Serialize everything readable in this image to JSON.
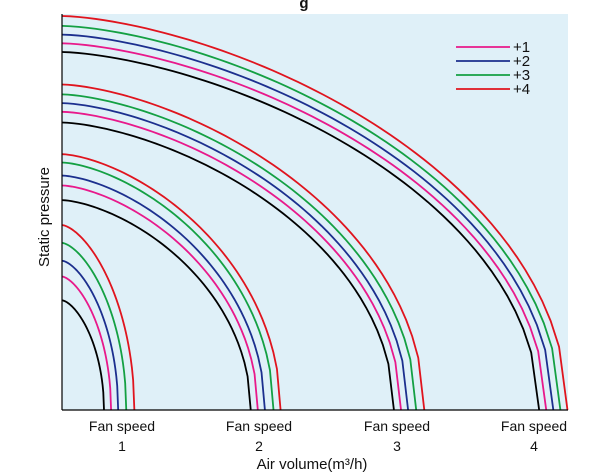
{
  "chart_data": {
    "type": "line",
    "title": "",
    "title_fragment": "g",
    "xlabel": "Air volume(m³/h)",
    "ylabel": "Static pressure",
    "background": "#dff0f8",
    "grid": false,
    "legend_position": "top-right",
    "fan_speeds": [
      {
        "label": "Fan speed",
        "number": "1"
      },
      {
        "label": "Fan speed",
        "number": "2"
      },
      {
        "label": "Fan speed",
        "number": "3"
      },
      {
        "label": "Fan speed",
        "number": "4"
      }
    ],
    "series_styles": [
      {
        "name": "",
        "color": "#000000"
      },
      {
        "name": "+1",
        "color": "#e8198b"
      },
      {
        "name": "+2",
        "color": "#1c2f8e"
      },
      {
        "name": "+3",
        "color": "#14a043"
      },
      {
        "name": "+4",
        "color": "#e0141e"
      }
    ],
    "curves": [
      {
        "fan_speed": 1,
        "step": 0,
        "y0": 0.277,
        "x_end": 0.083
      },
      {
        "fan_speed": 1,
        "step": 1,
        "y0": 0.337,
        "x_end": 0.097
      },
      {
        "fan_speed": 1,
        "step": 2,
        "y0": 0.377,
        "x_end": 0.111
      },
      {
        "fan_speed": 1,
        "step": 3,
        "y0": 0.422,
        "x_end": 0.127
      },
      {
        "fan_speed": 1,
        "step": 4,
        "y0": 0.467,
        "x_end": 0.143
      },
      {
        "fan_speed": 2,
        "step": 0,
        "y0": 0.53,
        "x_end": 0.373
      },
      {
        "fan_speed": 2,
        "step": 1,
        "y0": 0.567,
        "x_end": 0.387
      },
      {
        "fan_speed": 2,
        "step": 2,
        "y0": 0.592,
        "x_end": 0.401
      },
      {
        "fan_speed": 2,
        "step": 3,
        "y0": 0.625,
        "x_end": 0.418
      },
      {
        "fan_speed": 2,
        "step": 4,
        "y0": 0.646,
        "x_end": 0.432
      },
      {
        "fan_speed": 3,
        "step": 0,
        "y0": 0.726,
        "x_end": 0.656
      },
      {
        "fan_speed": 3,
        "step": 1,
        "y0": 0.753,
        "x_end": 0.67
      },
      {
        "fan_speed": 3,
        "step": 2,
        "y0": 0.775,
        "x_end": 0.684
      },
      {
        "fan_speed": 3,
        "step": 3,
        "y0": 0.797,
        "x_end": 0.7
      },
      {
        "fan_speed": 3,
        "step": 4,
        "y0": 0.822,
        "x_end": 0.716
      },
      {
        "fan_speed": 4,
        "step": 0,
        "y0": 0.904,
        "x_end": 0.943
      },
      {
        "fan_speed": 4,
        "step": 1,
        "y0": 0.926,
        "x_end": 0.957
      },
      {
        "fan_speed": 4,
        "step": 2,
        "y0": 0.948,
        "x_end": 0.971
      },
      {
        "fan_speed": 4,
        "step": 3,
        "y0": 0.97,
        "x_end": 0.985
      },
      {
        "fan_speed": 4,
        "step": 4,
        "y0": 0.995,
        "x_end": 0.999
      }
    ]
  }
}
